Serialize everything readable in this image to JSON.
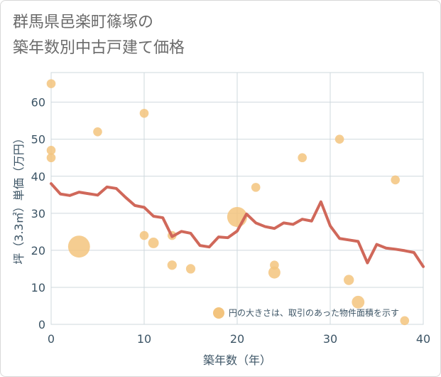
{
  "chart_data": {
    "type": "scatter",
    "title_lines": [
      "群馬県邑楽町篠塚の",
      "築年数別中古戸建て価格"
    ],
    "xlabel": "築年数（年）",
    "ylabel": "坪（3.3㎡）単価（万円）",
    "xlim": [
      0,
      40
    ],
    "ylim": [
      0,
      68
    ],
    "xticks": [
      0,
      10,
      20,
      30,
      40
    ],
    "yticks": [
      0,
      10,
      20,
      30,
      40,
      50,
      60
    ],
    "grid": true,
    "legend_text": "円の大きさは、取引のあった物件面積を示す",
    "colors": {
      "bubble": "#f3c47e",
      "line": "#d0685a"
    },
    "bubbles": [
      {
        "x": 0,
        "y": 65,
        "size": 1
      },
      {
        "x": 0,
        "y": 47,
        "size": 1
      },
      {
        "x": 0,
        "y": 45,
        "size": 1
      },
      {
        "x": 3,
        "y": 21,
        "size": 6
      },
      {
        "x": 5,
        "y": 52,
        "size": 1
      },
      {
        "x": 10,
        "y": 57,
        "size": 1
      },
      {
        "x": 10,
        "y": 24,
        "size": 1
      },
      {
        "x": 11,
        "y": 22,
        "size": 1.4
      },
      {
        "x": 13,
        "y": 24,
        "size": 1
      },
      {
        "x": 13,
        "y": 16,
        "size": 1.1
      },
      {
        "x": 15,
        "y": 15,
        "size": 1.1
      },
      {
        "x": 20,
        "y": 29,
        "size": 5
      },
      {
        "x": 22,
        "y": 37,
        "size": 1
      },
      {
        "x": 24,
        "y": 16,
        "size": 1
      },
      {
        "x": 24,
        "y": 14,
        "size": 1.8
      },
      {
        "x": 27,
        "y": 45,
        "size": 1
      },
      {
        "x": 31,
        "y": 50,
        "size": 1
      },
      {
        "x": 32,
        "y": 12,
        "size": 1.3
      },
      {
        "x": 33,
        "y": 6,
        "size": 2
      },
      {
        "x": 37,
        "y": 39,
        "size": 1
      },
      {
        "x": 38,
        "y": 1,
        "size": 1
      },
      {
        "x": 18,
        "y": 3,
        "size": 1.3
      }
    ],
    "series": [
      {
        "type": "line",
        "points": [
          [
            0,
            38
          ],
          [
            1,
            35.2
          ],
          [
            2,
            34.8
          ],
          [
            3,
            35.7
          ],
          [
            4,
            35.3
          ],
          [
            5,
            34.9
          ],
          [
            6,
            37.1
          ],
          [
            7,
            36.7
          ],
          [
            8,
            34.3
          ],
          [
            9,
            32.1
          ],
          [
            10,
            31.6
          ],
          [
            11,
            29.2
          ],
          [
            12,
            28.8
          ],
          [
            13,
            23.7
          ],
          [
            14,
            25.1
          ],
          [
            15,
            24.6
          ],
          [
            16,
            21.3
          ],
          [
            17,
            20.9
          ],
          [
            18,
            23.6
          ],
          [
            19,
            23.4
          ],
          [
            20,
            25.2
          ],
          [
            21,
            29.8
          ],
          [
            22,
            27.4
          ],
          [
            23,
            26.4
          ],
          [
            24,
            25.9
          ],
          [
            25,
            27.4
          ],
          [
            26,
            27
          ],
          [
            27,
            28.4
          ],
          [
            28,
            27.9
          ],
          [
            29,
            33.1
          ],
          [
            30,
            26.6
          ],
          [
            31,
            23.2
          ],
          [
            32,
            22.8
          ],
          [
            33,
            22.4
          ],
          [
            34,
            16.6
          ],
          [
            35,
            21.6
          ],
          [
            36,
            20.6
          ],
          [
            37,
            20.3
          ],
          [
            38,
            19.9
          ],
          [
            39,
            19.4
          ],
          [
            40,
            15.6
          ]
        ]
      }
    ]
  }
}
